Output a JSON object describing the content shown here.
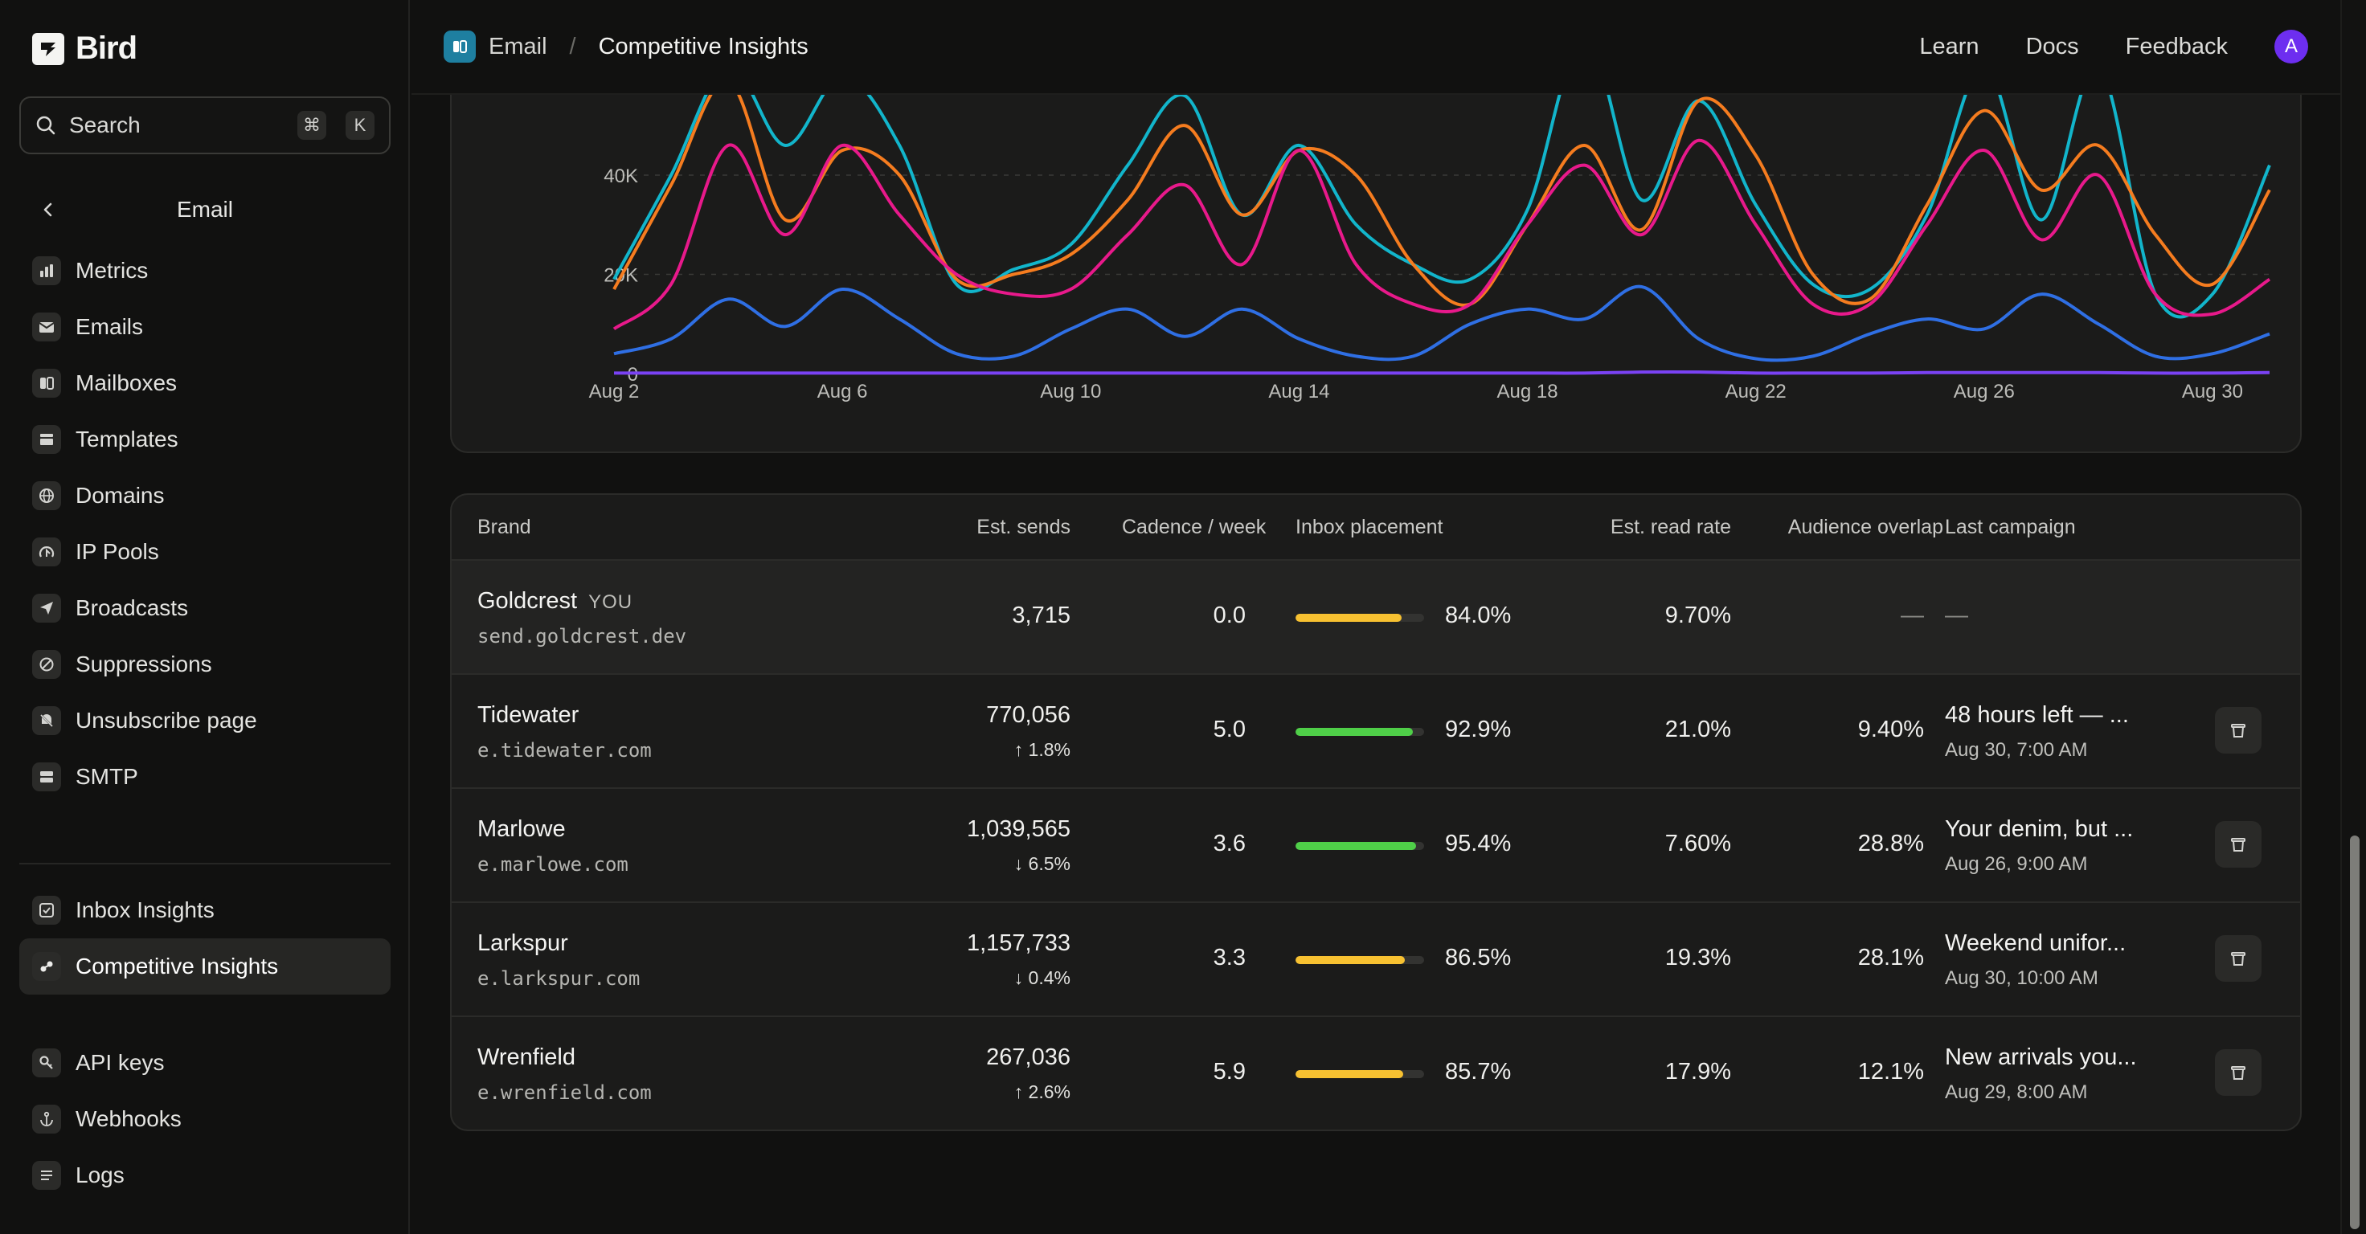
{
  "app": {
    "name": "Bird"
  },
  "search": {
    "label": "Search",
    "shortcut_cmd": "⌘",
    "shortcut_key": "K"
  },
  "sidebar": {
    "section_title": "Email",
    "items": [
      {
        "label": "Metrics",
        "icon": "bar-chart-icon"
      },
      {
        "label": "Emails",
        "icon": "envelope-icon"
      },
      {
        "label": "Mailboxes",
        "icon": "mailbox-icon"
      },
      {
        "label": "Templates",
        "icon": "template-icon"
      },
      {
        "label": "Domains",
        "icon": "globe-icon"
      },
      {
        "label": "IP Pools",
        "icon": "ip-pool-icon"
      },
      {
        "label": "Broadcasts",
        "icon": "paper-plane-icon"
      },
      {
        "label": "Suppressions",
        "icon": "block-icon"
      },
      {
        "label": "Unsubscribe page",
        "icon": "unsubscribe-icon"
      },
      {
        "label": "SMTP",
        "icon": "server-icon"
      }
    ],
    "insights": [
      {
        "label": "Inbox Insights",
        "icon": "inbox-check-icon"
      },
      {
        "label": "Competitive Insights",
        "icon": "competitive-icon",
        "active": true
      }
    ],
    "dev": [
      {
        "label": "API keys",
        "icon": "key-icon"
      },
      {
        "label": "Webhooks",
        "icon": "anchor-icon"
      },
      {
        "label": "Logs",
        "icon": "logs-icon"
      }
    ]
  },
  "header": {
    "breadcrumb_root": "Email",
    "breadcrumb_sep": "/",
    "breadcrumb_current": "Competitive Insights",
    "links": [
      "Learn",
      "Docs",
      "Feedback"
    ],
    "avatar_initial": "A"
  },
  "chart_data": {
    "type": "line",
    "x": [
      "Aug 2",
      "Aug 3",
      "Aug 4",
      "Aug 5",
      "Aug 6",
      "Aug 7",
      "Aug 8",
      "Aug 9",
      "Aug 10",
      "Aug 11",
      "Aug 12",
      "Aug 13",
      "Aug 14",
      "Aug 15",
      "Aug 16",
      "Aug 17",
      "Aug 18",
      "Aug 19",
      "Aug 20",
      "Aug 21",
      "Aug 22",
      "Aug 23",
      "Aug 24",
      "Aug 25",
      "Aug 26",
      "Aug 27",
      "Aug 28",
      "Aug 29",
      "Aug 30",
      "Aug 31"
    ],
    "x_ticks": [
      "Aug 2",
      "Aug 6",
      "Aug 10",
      "Aug 14",
      "Aug 18",
      "Aug 22",
      "Aug 26",
      "Aug 30"
    ],
    "y_ticks": [
      "0",
      "20K",
      "40K"
    ],
    "ylim": [
      0,
      56000
    ],
    "series": [
      {
        "color": "#12b5cb",
        "values": [
          19000,
          40000,
          62000,
          46000,
          60000,
          46000,
          18000,
          21000,
          26000,
          42000,
          56000,
          32000,
          46000,
          30000,
          22000,
          19000,
          33000,
          68000,
          35000,
          55000,
          34000,
          18000,
          17000,
          32000,
          62000,
          31000,
          62000,
          16000,
          16000,
          42000
        ]
      },
      {
        "color": "#f57c1f",
        "values": [
          17000,
          38000,
          59000,
          31000,
          45000,
          40000,
          19000,
          20000,
          24000,
          35000,
          50000,
          32000,
          45000,
          40000,
          22000,
          14000,
          30000,
          46000,
          29000,
          55000,
          44000,
          20000,
          15000,
          34000,
          53000,
          37000,
          46000,
          28000,
          18000,
          37000
        ]
      },
      {
        "color": "#e8198b",
        "values": [
          9000,
          18000,
          46000,
          28000,
          46000,
          32000,
          20000,
          16000,
          17000,
          28000,
          38000,
          22000,
          45000,
          22000,
          14000,
          14000,
          30000,
          42000,
          28000,
          47000,
          30000,
          14000,
          14000,
          30000,
          45000,
          27000,
          40000,
          16000,
          12000,
          19000
        ]
      },
      {
        "color": "#2f6fe4",
        "values": [
          4000,
          7000,
          15000,
          9500,
          17000,
          11000,
          4000,
          3500,
          9000,
          13000,
          7500,
          13000,
          7000,
          3500,
          3500,
          10000,
          13000,
          11000,
          17500,
          7000,
          3000,
          3500,
          8000,
          11000,
          9000,
          16000,
          10000,
          3500,
          4000,
          8000
        ]
      },
      {
        "color": "#7a42f4",
        "values": [
          100,
          100,
          100,
          100,
          100,
          100,
          100,
          100,
          100,
          100,
          100,
          100,
          100,
          100,
          100,
          100,
          100,
          100,
          300,
          300,
          100,
          100,
          100,
          200,
          200,
          200,
          200,
          100,
          100,
          200
        ]
      }
    ]
  },
  "table": {
    "columns": [
      "Brand",
      "Est. sends",
      "Cadence / week",
      "Inbox placement",
      "Est. read rate",
      "Audience overlap",
      "Last campaign"
    ],
    "you_tag": "YOU",
    "rows": [
      {
        "brand": "Goldcrest",
        "you": true,
        "domain": "send.goldcrest.dev",
        "sends": "3,715",
        "delta": "",
        "cadence": "0.0",
        "inbox": "84.0%",
        "inbox_value": 0.84,
        "bar_color": "#f7c131",
        "read": "9.70%",
        "overlap": "—",
        "campaign": "—",
        "campaign_date": ""
      },
      {
        "brand": "Tidewater",
        "domain": "e.tidewater.com",
        "sends": "770,056",
        "delta": "↑ 1.8%",
        "cadence": "5.0",
        "inbox": "92.9%",
        "inbox_value": 0.929,
        "bar_color": "#4fcf48",
        "read": "21.0%",
        "overlap": "9.40%",
        "campaign": "48 hours left — ...",
        "campaign_date": "Aug 30, 7:00 AM"
      },
      {
        "brand": "Marlowe",
        "domain": "e.marlowe.com",
        "sends": "1,039,565",
        "delta": "↓ 6.5%",
        "cadence": "3.6",
        "inbox": "95.4%",
        "inbox_value": 0.954,
        "bar_color": "#4fcf48",
        "read": "7.60%",
        "overlap": "28.8%",
        "campaign": "Your denim, but ...",
        "campaign_date": "Aug 26, 9:00 AM"
      },
      {
        "brand": "Larkspur",
        "domain": "e.larkspur.com",
        "sends": "1,157,733",
        "delta": "↓ 0.4%",
        "cadence": "3.3",
        "inbox": "86.5%",
        "inbox_value": 0.865,
        "bar_color": "#f7c131",
        "read": "19.3%",
        "overlap": "28.1%",
        "campaign": "Weekend unifor...",
        "campaign_date": "Aug 30, 10:00 AM"
      },
      {
        "brand": "Wrenfield",
        "domain": "e.wrenfield.com",
        "sends": "267,036",
        "delta": "↑ 2.6%",
        "cadence": "5.9",
        "inbox": "85.7%",
        "inbox_value": 0.857,
        "bar_color": "#f7c131",
        "read": "17.9%",
        "overlap": "12.1%",
        "campaign": "New arrivals you...",
        "campaign_date": "Aug 29, 8:00 AM"
      }
    ]
  }
}
